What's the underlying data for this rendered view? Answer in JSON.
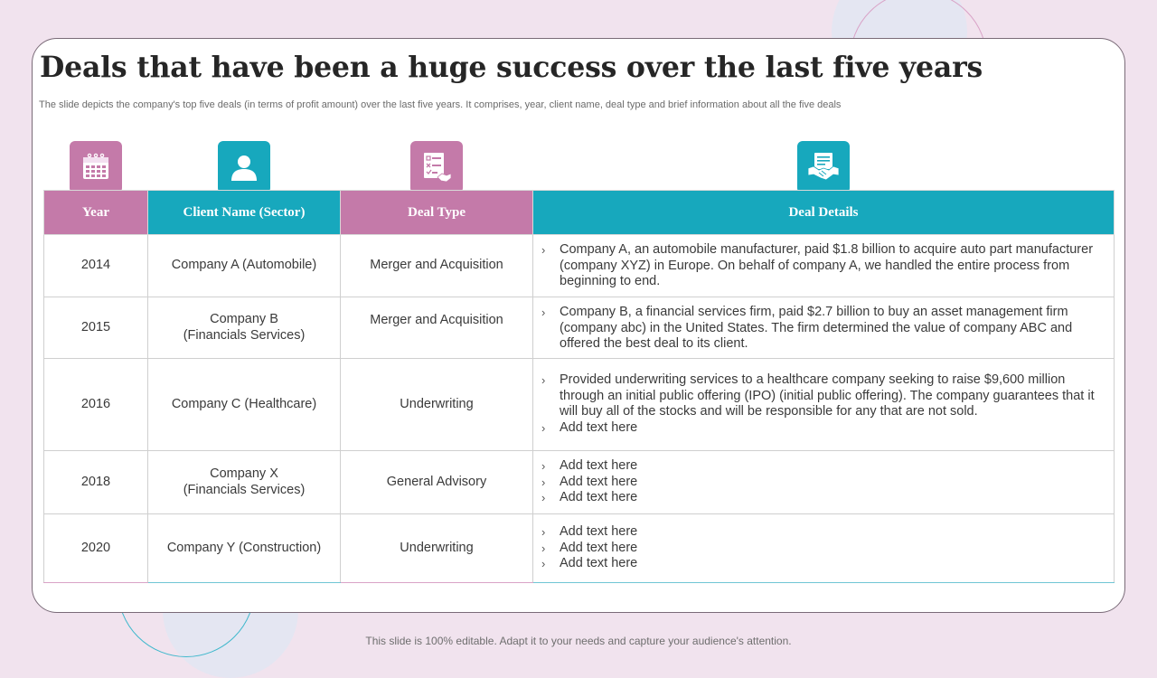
{
  "slide": {
    "title": "Deals that have been a huge success over the last five years",
    "subtitle": "The slide depicts the company's top five deals (in terms of profit amount) over the last five years. It comprises, year, client name, deal type and brief information about all the five deals",
    "footer": "This slide is 100% editable. Adapt it to your needs and capture your audience's attention."
  },
  "colors": {
    "pink": "#c47aa9",
    "teal": "#17a8bd",
    "background": "#f1e3ee"
  },
  "icons": [
    "calendar-icon",
    "user-icon",
    "checklist-handshake-icon",
    "handshake-document-icon"
  ],
  "table": {
    "headers": [
      "Year",
      "Client Name (Sector)",
      "Deal Type",
      "Deal Details"
    ],
    "rows": [
      {
        "year": "2014",
        "client": [
          "Company A (Automobile)"
        ],
        "deal_type": "Merger and Acquisition",
        "details": [
          "Company A, an automobile manufacturer, paid $1.8 billion to acquire auto part manufacturer (company XYZ)  in Europe. On behalf of company A, we handled the entire process from beginning to end."
        ]
      },
      {
        "year": "2015",
        "client": [
          "Company B",
          "(Financials Services)"
        ],
        "deal_type": "Merger and Acquisition",
        "details": [
          "Company B, a financial services firm, paid $2.7 billion to buy an asset management firm (company abc) in the United States. The firm determined the value of company ABC and offered the best deal to its client."
        ]
      },
      {
        "year": "2016",
        "client": [
          "Company C (Healthcare)"
        ],
        "deal_type": "Underwriting",
        "details": [
          "Provided underwriting services to a healthcare company seeking to raise $9,600 million through an initial public offering (IPO) (initial public offering). The company guarantees that it will buy all of the stocks and will be responsible for any that are not sold.",
          "Add text here"
        ]
      },
      {
        "year": "2018",
        "client": [
          "Company X",
          "(Financials Services)"
        ],
        "deal_type": "General Advisory",
        "details": [
          "Add text here",
          "Add text here",
          "Add text here"
        ]
      },
      {
        "year": "2020",
        "client": [
          "Company Y (Construction)"
        ],
        "deal_type": "Underwriting",
        "details": [
          "Add text here",
          "Add text here",
          "Add text here"
        ]
      }
    ]
  }
}
